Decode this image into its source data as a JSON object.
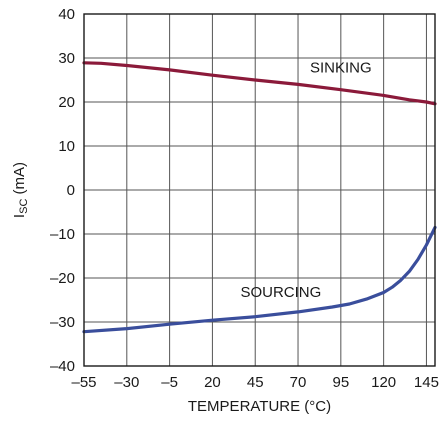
{
  "chart_data": {
    "type": "line",
    "xlabel": "TEMPERATURE (°C)",
    "ylabel_main": "I",
    "ylabel_sub": "SC",
    "ylabel_unit": " (mA)",
    "xlim": [
      -55,
      150
    ],
    "ylim": [
      -40,
      40
    ],
    "xticks": [
      -55,
      -30,
      -5,
      20,
      45,
      70,
      95,
      120,
      145
    ],
    "yticks": [
      -40,
      -30,
      -20,
      -10,
      0,
      10,
      20,
      30,
      40
    ],
    "xtick_labels": [
      "–55",
      "–30",
      "–5",
      "20",
      "45",
      "70",
      "95",
      "120",
      "145"
    ],
    "ytick_labels": [
      "–40",
      "–30",
      "–20",
      "–10",
      "0",
      "10",
      "20",
      "30",
      "40"
    ],
    "grid": true,
    "series": [
      {
        "name": "SINKING",
        "color": "#8b1a3a",
        "x": [
          -55,
          -45,
          -30,
          -5,
          20,
          45,
          70,
          95,
          120,
          135,
          145,
          150
        ],
        "y": [
          28.9,
          28.8,
          28.3,
          27.3,
          26.1,
          25.0,
          24.0,
          22.8,
          21.5,
          20.5,
          20.0,
          19.6
        ]
      },
      {
        "name": "SOURCING",
        "color": "#3a4e9c",
        "x": [
          -55,
          -30,
          -5,
          20,
          45,
          70,
          90,
          100,
          110,
          120,
          125,
          130,
          135,
          140,
          145,
          150
        ],
        "y": [
          -32.2,
          -31.5,
          -30.5,
          -29.6,
          -28.8,
          -27.7,
          -26.6,
          -25.9,
          -24.8,
          -23.3,
          -22.1,
          -20.5,
          -18.5,
          -15.8,
          -12.5,
          -8.5
        ]
      }
    ],
    "annotations": [
      {
        "text": "SINKING",
        "x": 95,
        "y": 26.7
      },
      {
        "text": "SOURCING",
        "x": 60,
        "y": -24.3
      }
    ]
  }
}
